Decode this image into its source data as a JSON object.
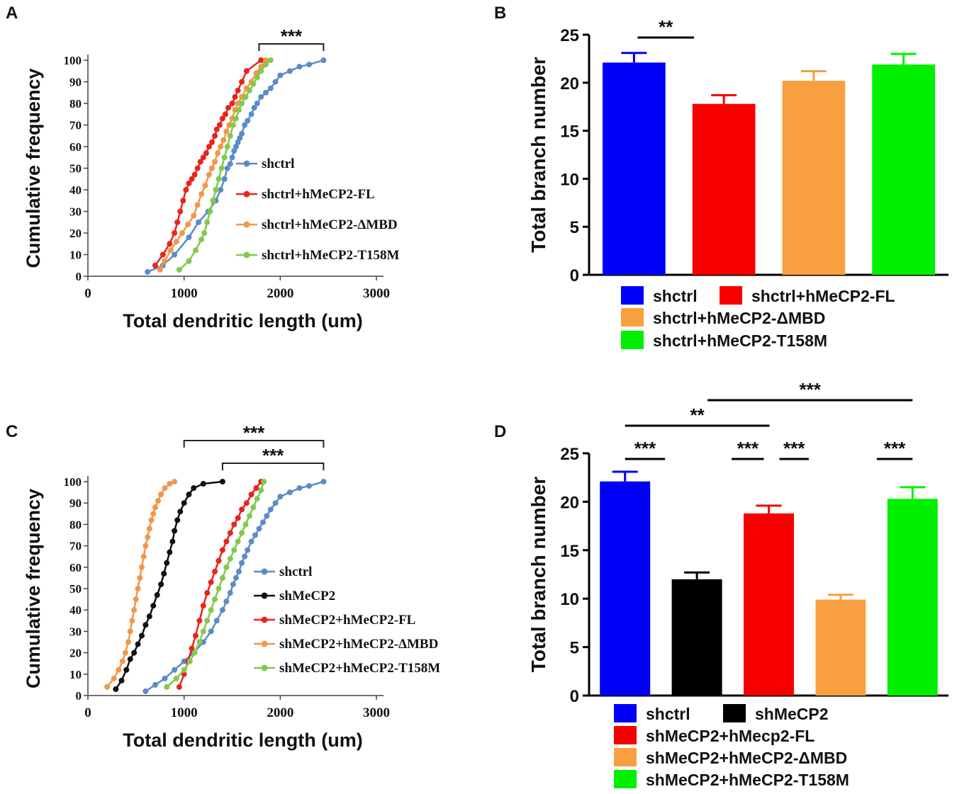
{
  "chart_data": [
    {
      "panel": "A",
      "type": "line",
      "title": "",
      "xlabel": "Total dendritic length (um)",
      "ylabel": "Cumulative frequency",
      "xlim": [
        0,
        3000
      ],
      "ylim": [
        0,
        100
      ],
      "xticks": [
        "0",
        "1000",
        "2000",
        "3000"
      ],
      "yticks": [
        "0",
        "10",
        "20",
        "30",
        "40",
        "50",
        "60",
        "70",
        "80",
        "90",
        "100"
      ],
      "legend_position": "right",
      "significance": [
        {
          "from": 1780,
          "to": 2450,
          "label": "***"
        }
      ],
      "series": [
        {
          "name": "shctrl",
          "color": "#5b8cc6",
          "x": [
            620,
            780,
            900,
            1050,
            1150,
            1250,
            1330,
            1380,
            1420,
            1450,
            1480,
            1500,
            1520,
            1540,
            1560,
            1580,
            1600,
            1630,
            1660,
            1700,
            1730,
            1760,
            1800,
            1850,
            1900,
            1950,
            2000,
            2100,
            2200,
            2300,
            2450
          ],
          "y": [
            2,
            5,
            10,
            18,
            25,
            30,
            35,
            40,
            45,
            50,
            52,
            55,
            58,
            60,
            62,
            64,
            66,
            70,
            72,
            75,
            78,
            80,
            83,
            85,
            87,
            90,
            93,
            95,
            97,
            98,
            100
          ]
        },
        {
          "name": "shctrl+hMeCP2-FL",
          "color": "#e8241c",
          "x": [
            700,
            780,
            850,
            900,
            930,
            960,
            990,
            1020,
            1050,
            1080,
            1110,
            1140,
            1170,
            1200,
            1230,
            1260,
            1290,
            1320,
            1340,
            1370,
            1400,
            1430,
            1460,
            1500,
            1530,
            1560,
            1600,
            1650,
            1800
          ],
          "y": [
            5,
            10,
            15,
            20,
            25,
            30,
            35,
            40,
            43,
            45,
            47,
            50,
            53,
            55,
            57,
            60,
            62,
            65,
            68,
            70,
            73,
            75,
            78,
            80,
            83,
            86,
            90,
            95,
            100
          ]
        },
        {
          "name": "shctrl+hMeCP2-ΔMBD",
          "color": "#f0974a",
          "x": [
            750,
            800,
            860,
            920,
            980,
            1040,
            1100,
            1140,
            1180,
            1220,
            1260,
            1290,
            1320,
            1350,
            1380,
            1410,
            1440,
            1470,
            1500,
            1530,
            1560,
            1600,
            1650,
            1700,
            1750,
            1800,
            1850
          ],
          "y": [
            3,
            7,
            12,
            16,
            20,
            24,
            28,
            33,
            38,
            42,
            47,
            50,
            53,
            57,
            60,
            63,
            67,
            70,
            73,
            77,
            80,
            83,
            87,
            90,
            94,
            97,
            100
          ]
        },
        {
          "name": "shctrl+hMeCP2-T158M",
          "color": "#82c94c",
          "x": [
            950,
            1050,
            1120,
            1180,
            1210,
            1240,
            1270,
            1300,
            1330,
            1360,
            1390,
            1420,
            1450,
            1480,
            1510,
            1540,
            1570,
            1600,
            1640,
            1680,
            1720,
            1760,
            1800,
            1850,
            1900
          ],
          "y": [
            3,
            7,
            12,
            17,
            20,
            25,
            30,
            35,
            40,
            45,
            50,
            55,
            60,
            65,
            70,
            73,
            77,
            80,
            83,
            86,
            89,
            92,
            95,
            98,
            100
          ]
        }
      ]
    },
    {
      "panel": "B",
      "type": "bar",
      "title": "",
      "xlabel": "",
      "ylabel": "Total branch number",
      "ylim": [
        0,
        25
      ],
      "yticks": [
        "0",
        "5",
        "10",
        "15",
        "20",
        "25"
      ],
      "categories": [
        "shctrl",
        "shctrl+hMeCP2-FL",
        "shctrl+hMeCP2-ΔMBD",
        "shctrl+hMeCP2-T158M"
      ],
      "values": [
        22.1,
        17.8,
        20.2,
        21.9
      ],
      "errors": [
        1.0,
        0.9,
        1.0,
        1.1
      ],
      "colors": [
        "#0000f8",
        "#f80000",
        "#f8a040",
        "#00f000"
      ],
      "significance": [
        {
          "from": 0,
          "to": 1,
          "label": "**"
        }
      ]
    },
    {
      "panel": "C",
      "type": "line",
      "title": "",
      "xlabel": "Total dendritic length (um)",
      "ylabel": "Cumulative frequency",
      "xlim": [
        0,
        3000
      ],
      "ylim": [
        0,
        100
      ],
      "xticks": [
        "0",
        "1000",
        "2000",
        "3000"
      ],
      "yticks": [
        "0",
        "10",
        "20",
        "30",
        "40",
        "50",
        "60",
        "70",
        "80",
        "90",
        "100"
      ],
      "legend_position": "right",
      "significance": [
        {
          "from": 1000,
          "to": 2450,
          "label": "***"
        },
        {
          "from": 1400,
          "to": 2450,
          "label": "***"
        }
      ],
      "series": [
        {
          "name": "shctrl",
          "color": "#5b8cc6",
          "x": [
            600,
            700,
            800,
            900,
            1000,
            1100,
            1200,
            1280,
            1340,
            1400,
            1440,
            1480,
            1510,
            1540,
            1570,
            1600,
            1630,
            1660,
            1700,
            1740,
            1780,
            1820,
            1860,
            1900,
            1950,
            2000,
            2100,
            2200,
            2300,
            2450
          ],
          "y": [
            2,
            5,
            8,
            12,
            16,
            20,
            25,
            30,
            35,
            40,
            44,
            48,
            52,
            55,
            58,
            62,
            65,
            68,
            72,
            75,
            78,
            81,
            84,
            87,
            90,
            93,
            95,
            97,
            98,
            100
          ]
        },
        {
          "name": "shMeCP2",
          "color": "#111111",
          "x": [
            290,
            350,
            400,
            440,
            480,
            520,
            560,
            600,
            640,
            680,
            720,
            760,
            790,
            820,
            850,
            880,
            900,
            930,
            960,
            1000,
            1050,
            1100,
            1200,
            1400
          ],
          "y": [
            3,
            7,
            12,
            17,
            20,
            24,
            28,
            33,
            37,
            42,
            47,
            52,
            57,
            62,
            67,
            72,
            77,
            82,
            86,
            90,
            94,
            97,
            99,
            100
          ]
        },
        {
          "name": "shMeCP2+hMeCP2-FL",
          "color": "#e8241c",
          "x": [
            950,
            1000,
            1040,
            1080,
            1120,
            1160,
            1200,
            1240,
            1280,
            1320,
            1360,
            1400,
            1440,
            1480,
            1520,
            1560,
            1600,
            1650,
            1700,
            1750,
            1800
          ],
          "y": [
            4,
            10,
            16,
            22,
            28,
            35,
            42,
            48,
            53,
            58,
            63,
            68,
            72,
            76,
            80,
            83,
            87,
            90,
            94,
            97,
            100
          ]
        },
        {
          "name": "shMeCP2+hMeCP2-ΔMBD",
          "color": "#f0974a",
          "x": [
            200,
            270,
            320,
            360,
            390,
            420,
            440,
            460,
            480,
            500,
            520,
            540,
            560,
            580,
            600,
            620,
            640,
            660,
            680,
            700,
            730,
            760,
            800,
            850,
            900
          ],
          "y": [
            4,
            8,
            12,
            16,
            20,
            25,
            30,
            35,
            40,
            45,
            50,
            55,
            60,
            65,
            70,
            74,
            78,
            82,
            85,
            88,
            91,
            94,
            97,
            99,
            100
          ]
        },
        {
          "name": "shMeCP2+hMeCP2-T158M",
          "color": "#82c94c",
          "x": [
            820,
            920,
            1000,
            1060,
            1110,
            1160,
            1200,
            1240,
            1280,
            1320,
            1360,
            1400,
            1440,
            1480,
            1520,
            1560,
            1600,
            1640,
            1680,
            1720,
            1760,
            1800,
            1830
          ],
          "y": [
            4,
            8,
            12,
            16,
            20,
            25,
            30,
            35,
            40,
            45,
            50,
            55,
            60,
            64,
            68,
            72,
            76,
            80,
            84,
            88,
            92,
            96,
            100
          ]
        }
      ]
    },
    {
      "panel": "D",
      "type": "bar",
      "title": "",
      "xlabel": "",
      "ylabel": "Total branch number",
      "ylim": [
        0,
        25
      ],
      "yticks": [
        "0",
        "5",
        "10",
        "15",
        "20",
        "25"
      ],
      "categories": [
        "shctrl",
        "shMeCP2",
        "shMeCP2+hMecp2-FL",
        "shMeCP2+hMeCP2-ΔMBD",
        "shMeCP2+hMeCP2-T158M"
      ],
      "values": [
        22.1,
        12.0,
        18.8,
        9.9,
        20.3
      ],
      "errors": [
        1.0,
        0.7,
        0.8,
        0.5,
        1.2
      ],
      "colors": [
        "#0000f8",
        "#000000",
        "#f80000",
        "#f8a040",
        "#00f000"
      ],
      "significance": [
        {
          "from": 0,
          "to": 1,
          "label": "***"
        },
        {
          "from": 1,
          "to": 2,
          "label": "***"
        },
        {
          "from": 2,
          "to": 3,
          "label": "***"
        },
        {
          "from": 3,
          "to": 4,
          "label": "***"
        },
        {
          "from": 0,
          "to": 2,
          "label": "**"
        },
        {
          "from": 1,
          "to": 4,
          "label": "***"
        }
      ]
    }
  ]
}
